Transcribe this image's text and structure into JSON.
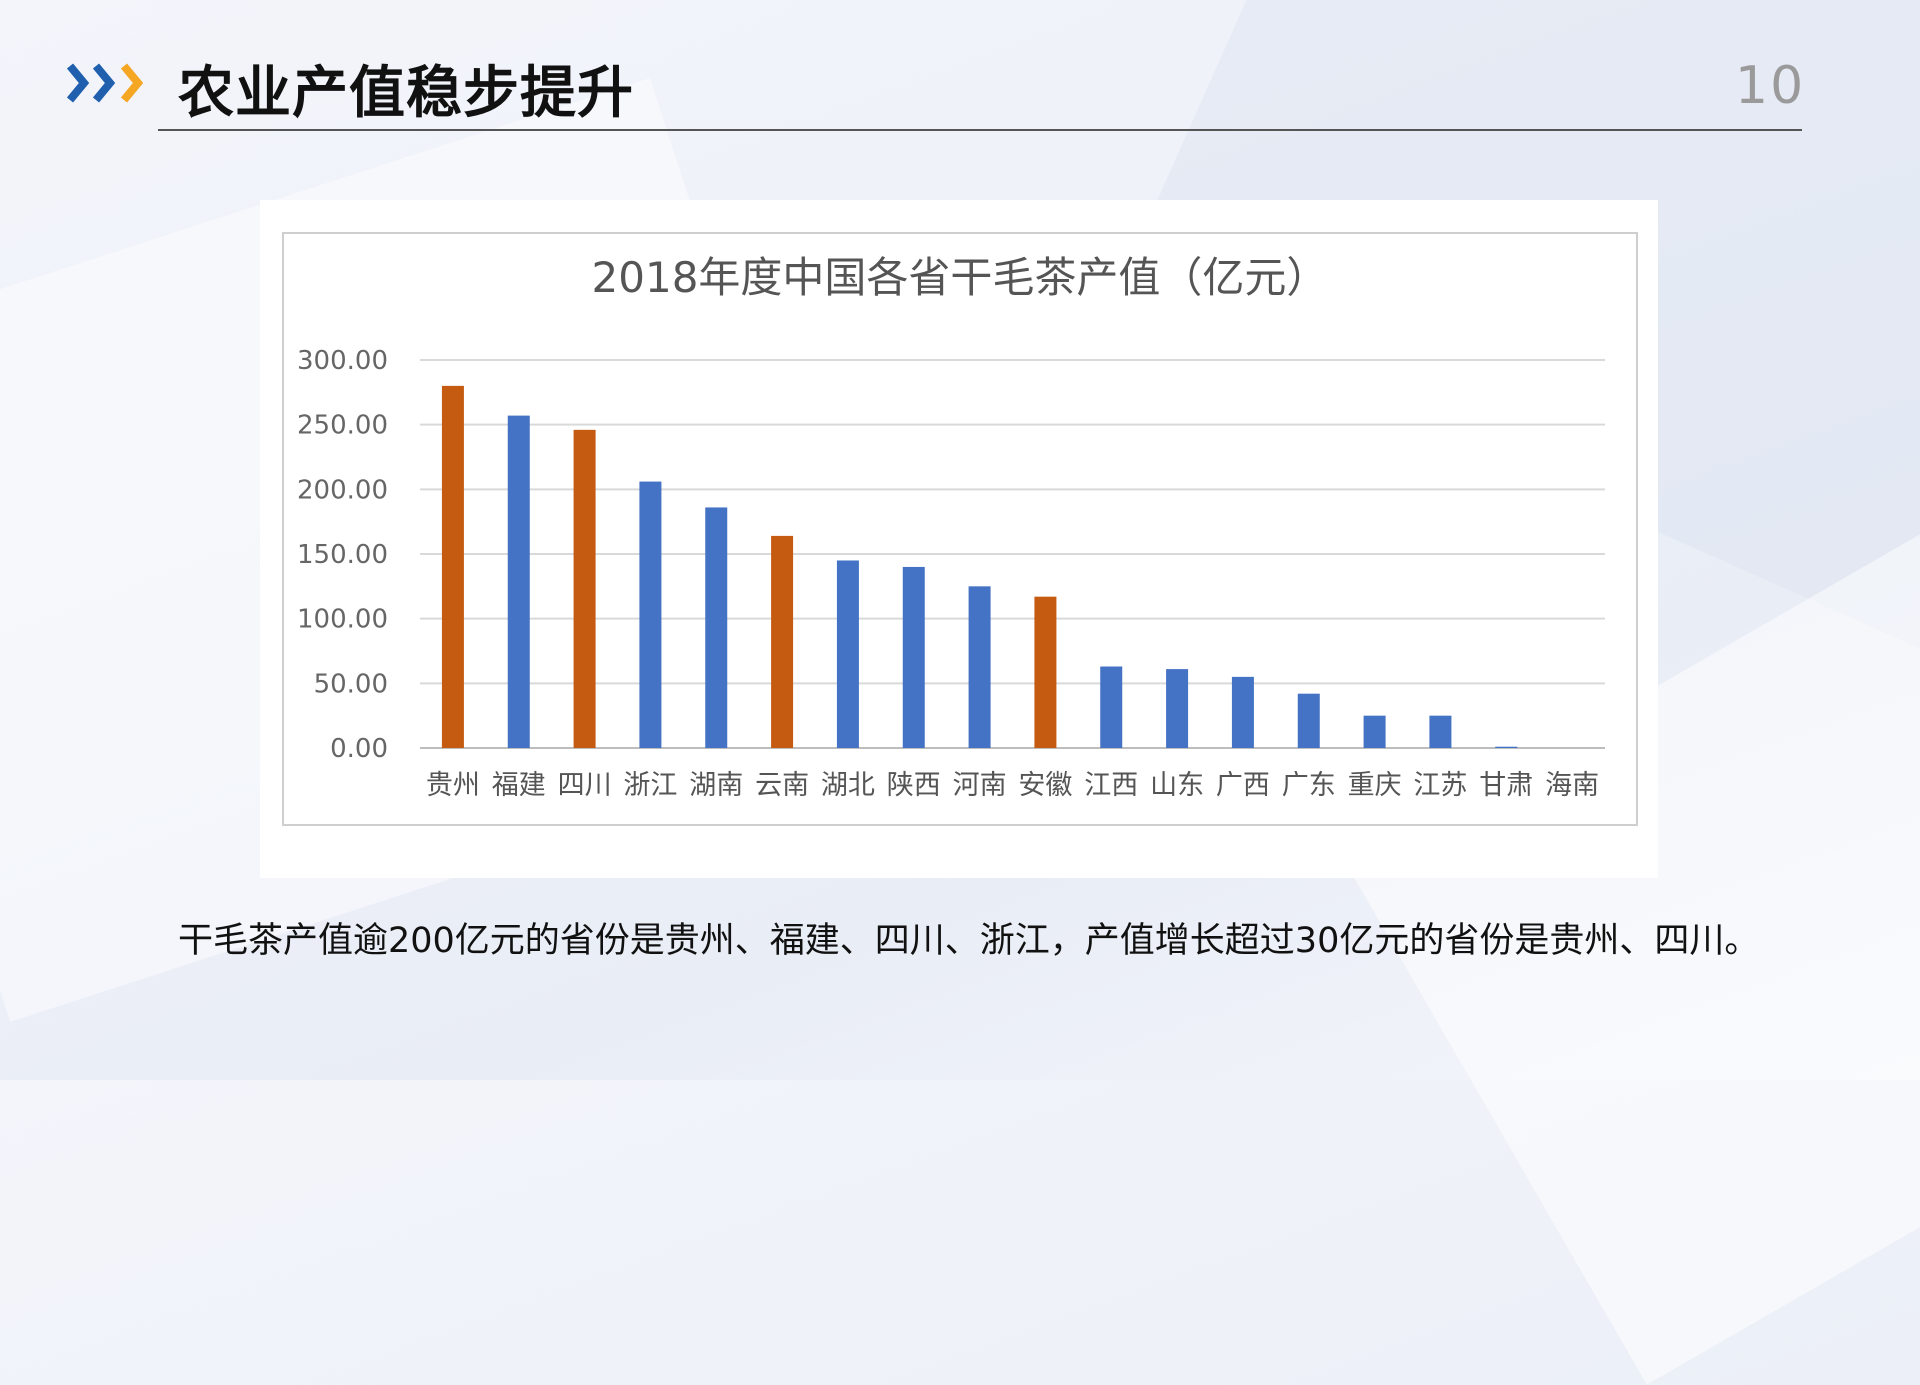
{
  "slide": {
    "title": "农业产值稳步提升",
    "page_number": "10",
    "caption": "干毛茶产值逾200亿元的省份是贵州、福建、四川、浙江，产值增长超过30亿元的省份是贵州、四川。"
  },
  "colors": {
    "blue": "#4472c4",
    "orange": "#c55a11",
    "chevron_blue": "#1f5fae",
    "chevron_orange": "#f5a623"
  },
  "chart_data": {
    "type": "bar",
    "title": "2018年度中国各省干毛茶产值（亿元）",
    "categories": [
      "贵州",
      "福建",
      "四川",
      "浙江",
      "湖南",
      "云南",
      "湖北",
      "陕西",
      "河南",
      "安徽",
      "江西",
      "山东",
      "广西",
      "广东",
      "重庆",
      "江苏",
      "甘肃",
      "海南"
    ],
    "values": [
      280,
      257,
      246,
      206,
      186,
      164,
      145,
      140,
      125,
      117,
      63,
      61,
      55,
      42,
      25,
      25,
      1,
      0
    ],
    "bar_colors": [
      "orange",
      "blue",
      "orange",
      "blue",
      "blue",
      "orange",
      "blue",
      "blue",
      "blue",
      "orange",
      "blue",
      "blue",
      "blue",
      "blue",
      "blue",
      "blue",
      "blue",
      "blue"
    ],
    "yticks": [
      "0.00",
      "50.00",
      "100.00",
      "150.00",
      "200.00",
      "250.00",
      "300.00"
    ],
    "ylim": [
      0,
      300
    ],
    "grid": true,
    "legend": "none"
  }
}
